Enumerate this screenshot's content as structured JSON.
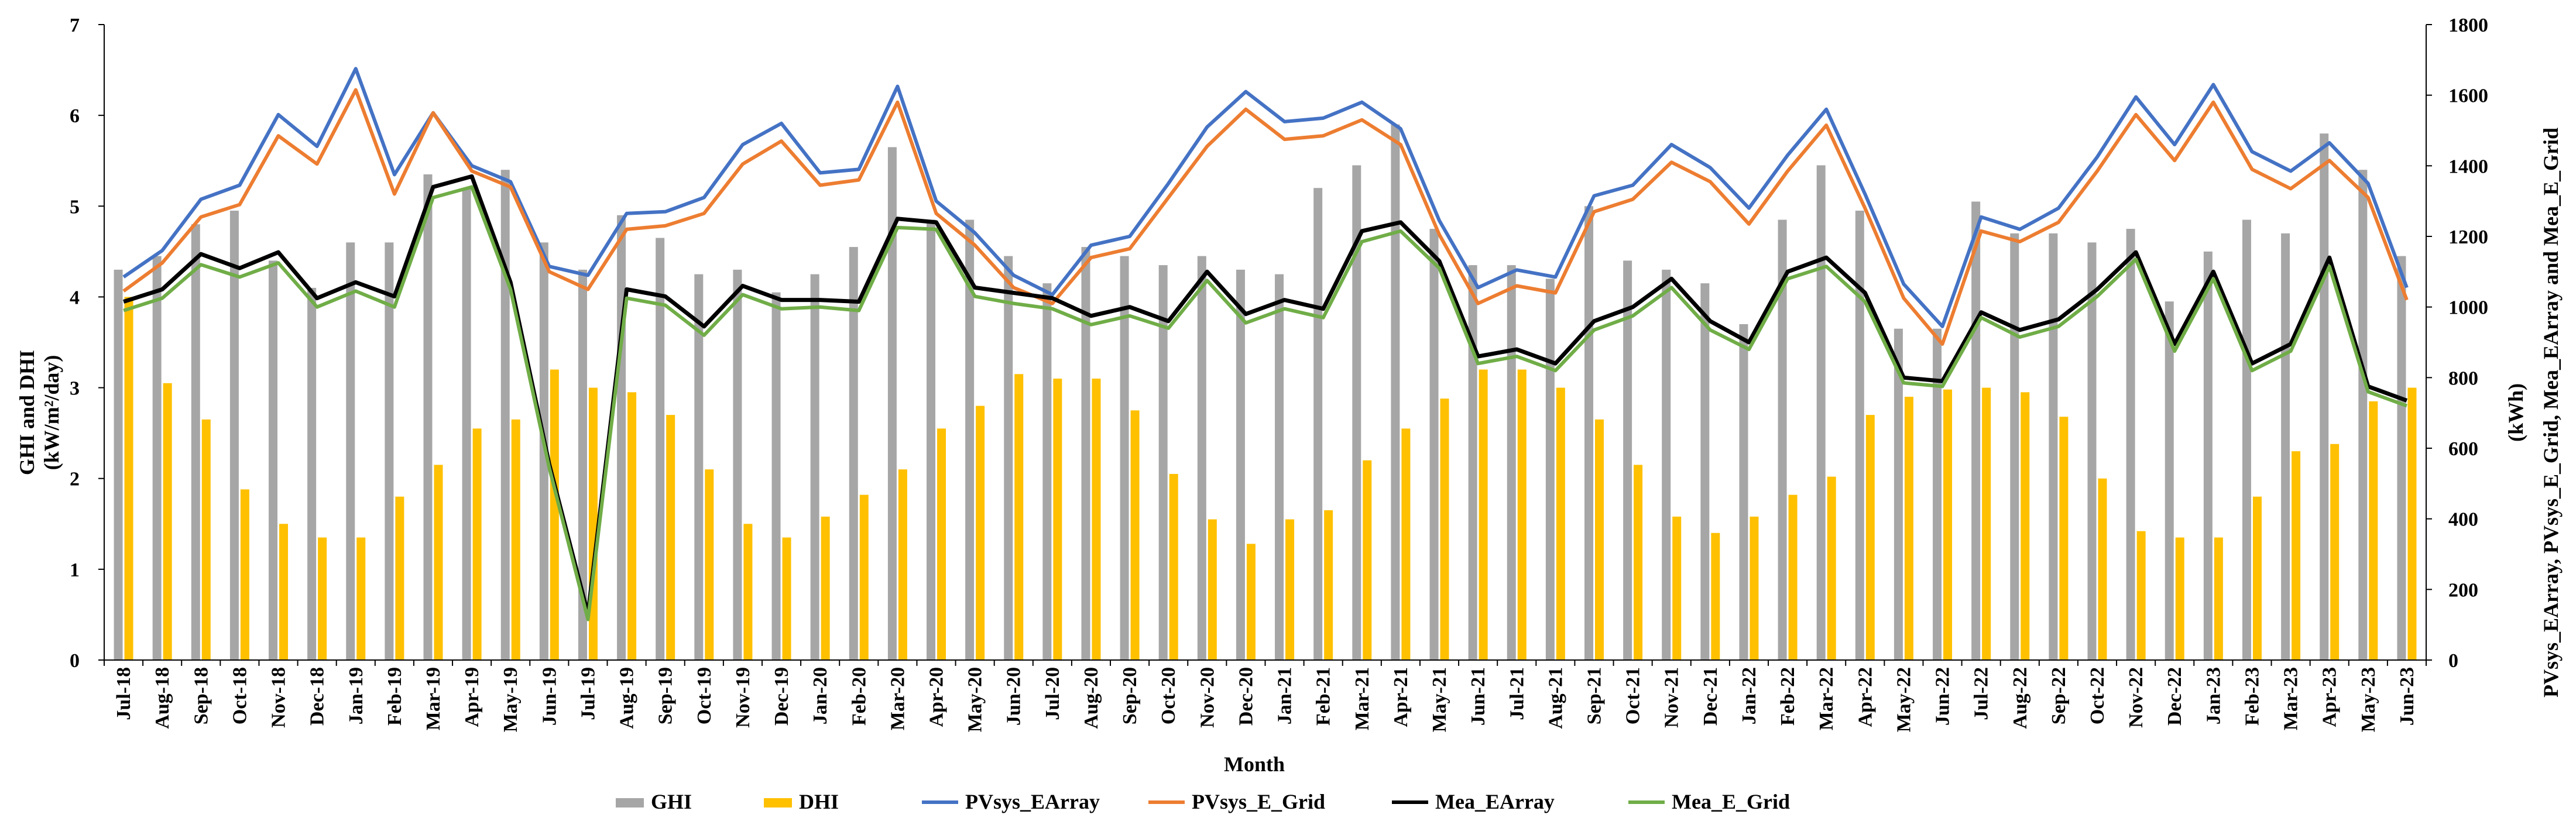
{
  "chart_data": {
    "type": "bar+line",
    "xlabel": "Month",
    "ylabel_left_line1": "GHI and DHI",
    "ylabel_left_line2": "(kW/m²/day)",
    "ylabel_right_line1": "(kWh)",
    "ylabel_right_line2": "PVsys_EArray, PVsys_E_Grid, Mea_EArray and Mea_E_Grid",
    "ylim_left": [
      0,
      7
    ],
    "ylim_right": [
      0,
      1800
    ],
    "yticks_left": [
      "0",
      "1",
      "2",
      "3",
      "4",
      "5",
      "6",
      "7"
    ],
    "yticks_right": [
      "0",
      "200",
      "400",
      "600",
      "800",
      "1000",
      "1200",
      "1400",
      "1600",
      "1800"
    ],
    "categories": [
      "Jul-18",
      "Aug-18",
      "Sep-18",
      "Oct-18",
      "Nov-18",
      "Dec-18",
      "Jan-19",
      "Feb-19",
      "Mar-19",
      "Apr-19",
      "May-19",
      "Jun-19",
      "Jul-19",
      "Aug-19",
      "Sep-19",
      "Oct-19",
      "Nov-19",
      "Dec-19",
      "Jan-20",
      "Feb-20",
      "Mar-20",
      "Apr-20",
      "May-20",
      "Jun-20",
      "Jul-20",
      "Aug-20",
      "Sep-20",
      "Oct-20",
      "Nov-20",
      "Dec-20",
      "Jan-21",
      "Feb-21",
      "Mar-21",
      "Apr-21",
      "May-21",
      "Jun-21",
      "Jul-21",
      "Aug-21",
      "Sep-21",
      "Oct-21",
      "Nov-21",
      "Dec-21",
      "Jan-22",
      "Feb-22",
      "Mar-22",
      "Apr-22",
      "May-22",
      "Jun-22",
      "Jul-22",
      "Aug-22",
      "Sep-22",
      "Oct-22",
      "Nov-22",
      "Dec-22",
      "Jan-23",
      "Feb-23",
      "Mar-23",
      "Apr-23",
      "May-23",
      "Jun-23"
    ],
    "bar_series": [
      {
        "name": "GHI",
        "color": "#a6a6a6",
        "axis": "left",
        "values": [
          4.3,
          4.45,
          4.8,
          4.95,
          4.4,
          4.1,
          4.6,
          4.6,
          5.35,
          5.2,
          5.4,
          4.6,
          4.3,
          4.9,
          4.65,
          4.25,
          4.3,
          4.05,
          4.25,
          4.55,
          5.65,
          4.85,
          4.85,
          4.45,
          4.15,
          4.55,
          4.45,
          4.35,
          4.45,
          4.3,
          4.25,
          5.2,
          5.45,
          5.9,
          4.75,
          4.35,
          4.35,
          4.2,
          5.0,
          4.4,
          4.3,
          4.15,
          3.7,
          4.85,
          5.45,
          4.95,
          3.65,
          3.65,
          5.05,
          4.7,
          4.7,
          4.6,
          4.75,
          3.95,
          4.5,
          4.85,
          4.7,
          5.8,
          5.4,
          4.45
        ]
      },
      {
        "name": "DHI",
        "color": "#ffc000",
        "axis": "left",
        "values": [
          4.0,
          3.05,
          2.65,
          1.88,
          1.5,
          1.35,
          1.35,
          1.8,
          2.15,
          2.55,
          2.65,
          3.2,
          3.0,
          2.95,
          2.7,
          2.1,
          1.5,
          1.35,
          1.58,
          1.82,
          2.1,
          2.55,
          2.8,
          3.15,
          3.1,
          3.1,
          2.75,
          2.05,
          1.55,
          1.28,
          1.55,
          1.65,
          2.2,
          2.55,
          2.88,
          3.2,
          3.2,
          3.0,
          2.65,
          2.15,
          1.58,
          1.4,
          1.58,
          1.82,
          2.02,
          2.7,
          2.9,
          2.98,
          3.0,
          2.95,
          2.68,
          2.0,
          1.42,
          1.35,
          1.35,
          1.8,
          2.3,
          2.38,
          2.85,
          3.0
        ]
      }
    ],
    "line_series": [
      {
        "name": "PVsys_EArray",
        "color": "#4472c4",
        "axis": "right",
        "values": [
          1085,
          1160,
          1305,
          1345,
          1545,
          1455,
          1675,
          1375,
          1550,
          1400,
          1355,
          1115,
          1090,
          1265,
          1270,
          1310,
          1460,
          1520,
          1380,
          1390,
          1625,
          1300,
          1210,
          1090,
          1035,
          1175,
          1200,
          1350,
          1510,
          1610,
          1525,
          1535,
          1580,
          1505,
          1245,
          1055,
          1105,
          1085,
          1315,
          1345,
          1460,
          1395,
          1280,
          1430,
          1560,
          1320,
          1065,
          945,
          1255,
          1220,
          1280,
          1425,
          1595,
          1460,
          1630,
          1440,
          1385,
          1465,
          1350,
          1055
        ]
      },
      {
        "name": "PVsys_E_Grid",
        "color": "#ed7d31",
        "axis": "right",
        "values": [
          1045,
          1125,
          1255,
          1290,
          1485,
          1405,
          1615,
          1320,
          1550,
          1385,
          1340,
          1100,
          1050,
          1220,
          1230,
          1265,
          1405,
          1470,
          1345,
          1360,
          1580,
          1265,
          1175,
          1055,
          1010,
          1140,
          1165,
          1310,
          1455,
          1560,
          1475,
          1485,
          1530,
          1460,
          1205,
          1010,
          1060,
          1040,
          1270,
          1305,
          1410,
          1355,
          1235,
          1385,
          1515,
          1280,
          1025,
          895,
          1215,
          1185,
          1240,
          1385,
          1545,
          1415,
          1580,
          1390,
          1335,
          1415,
          1310,
          1020
        ]
      },
      {
        "name": "Mea_EArray",
        "color": "#000000",
        "axis": "right",
        "values": [
          1015,
          1050,
          1150,
          1110,
          1155,
          1025,
          1070,
          1030,
          1340,
          1370,
          1070,
          555,
          130,
          1050,
          1030,
          945,
          1060,
          1020,
          1020,
          1015,
          1250,
          1240,
          1055,
          1040,
          1025,
          975,
          1000,
          960,
          1100,
          980,
          1020,
          995,
          1215,
          1240,
          1130,
          860,
          880,
          840,
          960,
          1000,
          1080,
          960,
          900,
          1100,
          1140,
          1040,
          800,
          790,
          985,
          935,
          965,
          1050,
          1155,
          895,
          1100,
          840,
          895,
          1140,
          775,
          735
        ]
      },
      {
        "name": "Mea_E_Grid",
        "color": "#70ad47",
        "axis": "right",
        "values": [
          990,
          1025,
          1120,
          1085,
          1125,
          1000,
          1045,
          1000,
          1310,
          1340,
          1050,
          545,
          115,
          1025,
          1005,
          920,
          1035,
          995,
          1000,
          990,
          1225,
          1220,
          1030,
          1010,
          995,
          950,
          975,
          940,
          1075,
          955,
          995,
          970,
          1185,
          1215,
          1110,
          840,
          860,
          820,
          935,
          975,
          1055,
          935,
          880,
          1080,
          1115,
          1015,
          785,
          775,
          970,
          915,
          945,
          1030,
          1135,
          875,
          1080,
          820,
          875,
          1115,
          760,
          720
        ]
      }
    ],
    "legend": {
      "placement": "bottom-center",
      "entries": [
        {
          "label": "GHI",
          "kind": "bar",
          "color": "#a6a6a6"
        },
        {
          "label": "DHI",
          "kind": "bar",
          "color": "#ffc000"
        },
        {
          "label": "PVsys_EArray",
          "kind": "line",
          "color": "#4472c4"
        },
        {
          "label": "PVsys_E_Grid",
          "kind": "line",
          "color": "#ed7d31"
        },
        {
          "label": "Mea_EArray",
          "kind": "line",
          "color": "#000000"
        },
        {
          "label": "Mea_E_Grid",
          "kind": "line",
          "color": "#70ad47"
        }
      ]
    },
    "grid": false
  }
}
